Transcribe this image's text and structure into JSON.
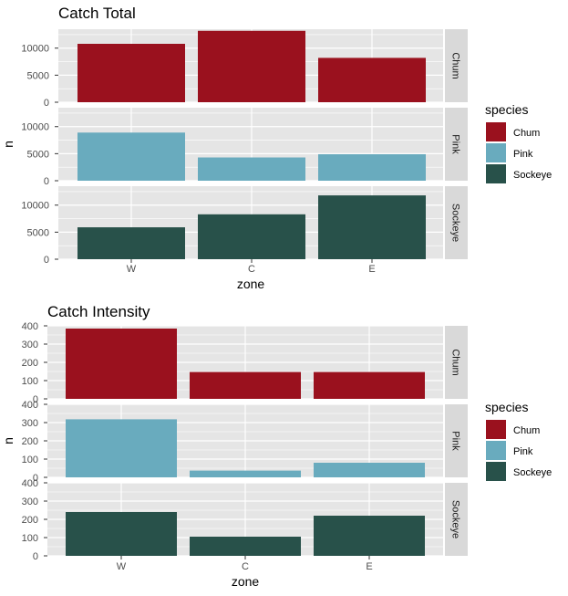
{
  "colors": {
    "Chum": "#9a111e",
    "Pink": "#69abbe",
    "Sockeye": "#28514a",
    "panel": "#e5e5e5",
    "grid": "#ffffff",
    "strip": "#d9d9d9"
  },
  "chart_data": [
    {
      "type": "bar",
      "title": "Catch Total",
      "xlabel": "zone",
      "ylabel": "n",
      "categories": [
        "W",
        "C",
        "E"
      ],
      "ylim": [
        0,
        13500
      ],
      "yticks": [
        0,
        5000,
        10000
      ],
      "legend": {
        "title": "species",
        "placement": "right"
      },
      "series": [
        {
          "name": "Chum",
          "values": [
            10800,
            13200,
            8200
          ]
        },
        {
          "name": "Pink",
          "values": [
            8900,
            4300,
            4900
          ]
        },
        {
          "name": "Sockeye",
          "values": [
            5900,
            8300,
            11800
          ]
        }
      ]
    },
    {
      "type": "bar",
      "title": "Catch Intensity",
      "xlabel": "zone",
      "ylabel": "n",
      "categories": [
        "W",
        "C",
        "E"
      ],
      "ylim": [
        0,
        400
      ],
      "yticks": [
        0,
        100,
        200,
        300,
        400
      ],
      "legend": {
        "title": "species",
        "placement": "right"
      },
      "series": [
        {
          "name": "Chum",
          "values": [
            385,
            147,
            147
          ]
        },
        {
          "name": "Pink",
          "values": [
            318,
            37,
            80
          ]
        },
        {
          "name": "Sockeye",
          "values": [
            240,
            105,
            220
          ]
        }
      ]
    }
  ]
}
